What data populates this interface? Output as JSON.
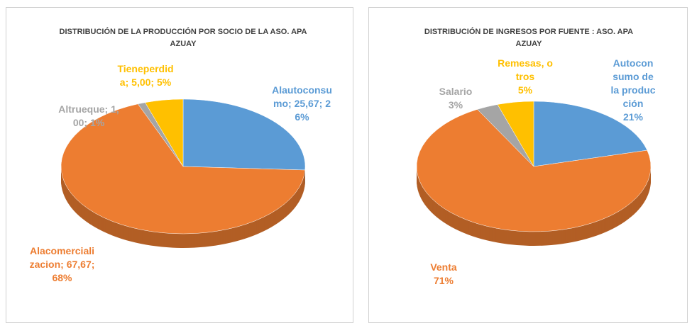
{
  "chart_data": [
    {
      "type": "pie",
      "title": "DISTRIBUCIÓN DE LA PRODUCCIÓN POR SOCIO DE LA ASO. APA AZUAY",
      "categories": [
        "Alautoconsumo",
        "Alacomercializacion",
        "Altrueque",
        "Tieneperdida"
      ],
      "values": [
        25.67,
        67.67,
        1.0,
        5.0
      ],
      "value_labels": [
        "25,67",
        "67,67",
        "1,00",
        "5,00"
      ],
      "percent_labels": [
        "26%",
        "68%",
        "1%",
        "5%"
      ],
      "colors": [
        "#5b9bd5",
        "#ed7d31",
        "#a5a5a5",
        "#ffc000"
      ]
    },
    {
      "type": "pie",
      "title": "DISTRIBUCIÓN DE INGRESOS POR FUENTE : ASO. APA AZUAY",
      "categories": [
        "Autoconsumo de la producción",
        "Venta",
        "Salario",
        "Remesas, otros"
      ],
      "values": [
        21,
        71,
        3,
        5
      ],
      "value_labels": [
        "21%",
        "71%",
        "3%",
        "5%"
      ],
      "colors": [
        "#5b9bd5",
        "#ed7d31",
        "#a5a5a5",
        "#ffc000"
      ]
    }
  ]
}
